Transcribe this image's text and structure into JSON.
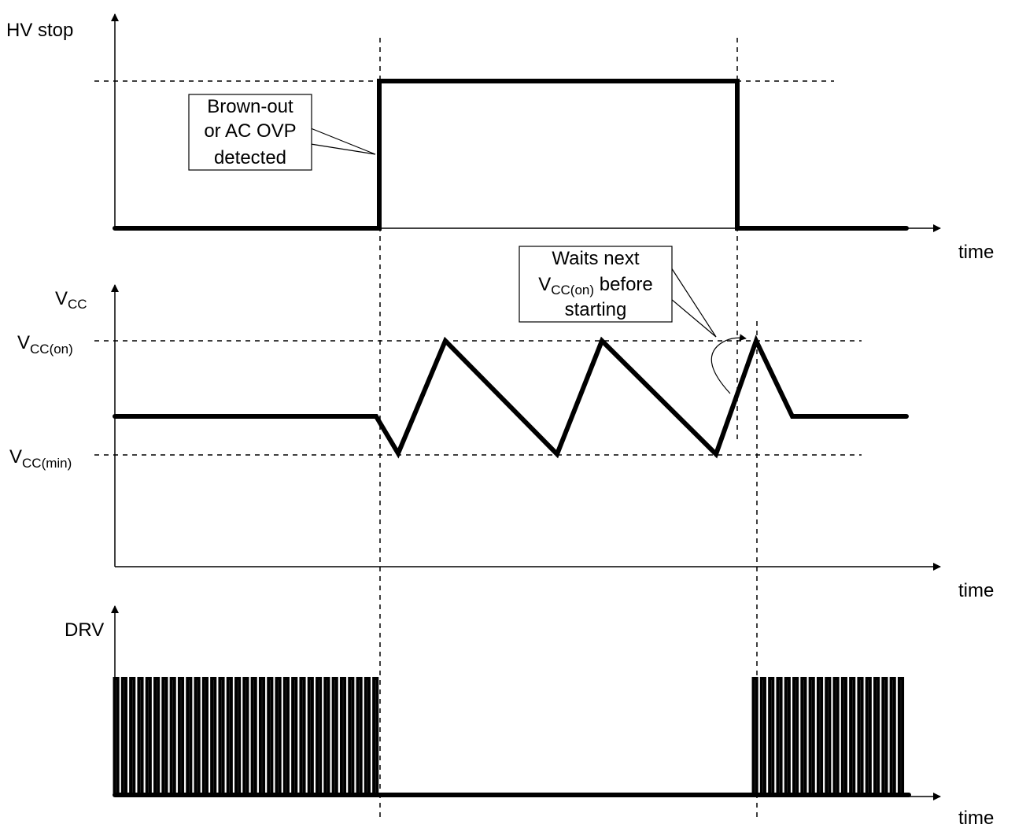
{
  "panels": {
    "hv_stop": {
      "ylabel": "HV stop",
      "xlabel": "time"
    },
    "vcc": {
      "ylabel_main": "V",
      "ylabel_sub": "CC",
      "xlabel": "time"
    },
    "drv": {
      "ylabel": "DRV",
      "xlabel": "time"
    }
  },
  "levels": {
    "vcc_on": {
      "main": "V",
      "sub": "CC(on)"
    },
    "vcc_min": {
      "main": "V",
      "sub": "CC(min)"
    }
  },
  "callouts": {
    "brownout": {
      "line1": "Brown-out",
      "line2": "or AC OVP",
      "line3": "detected"
    },
    "waits": {
      "line1": "Waits next",
      "line2_main": "V",
      "line2_sub": "CC(on)",
      "line2_tail": " before",
      "line3": "starting"
    }
  }
}
